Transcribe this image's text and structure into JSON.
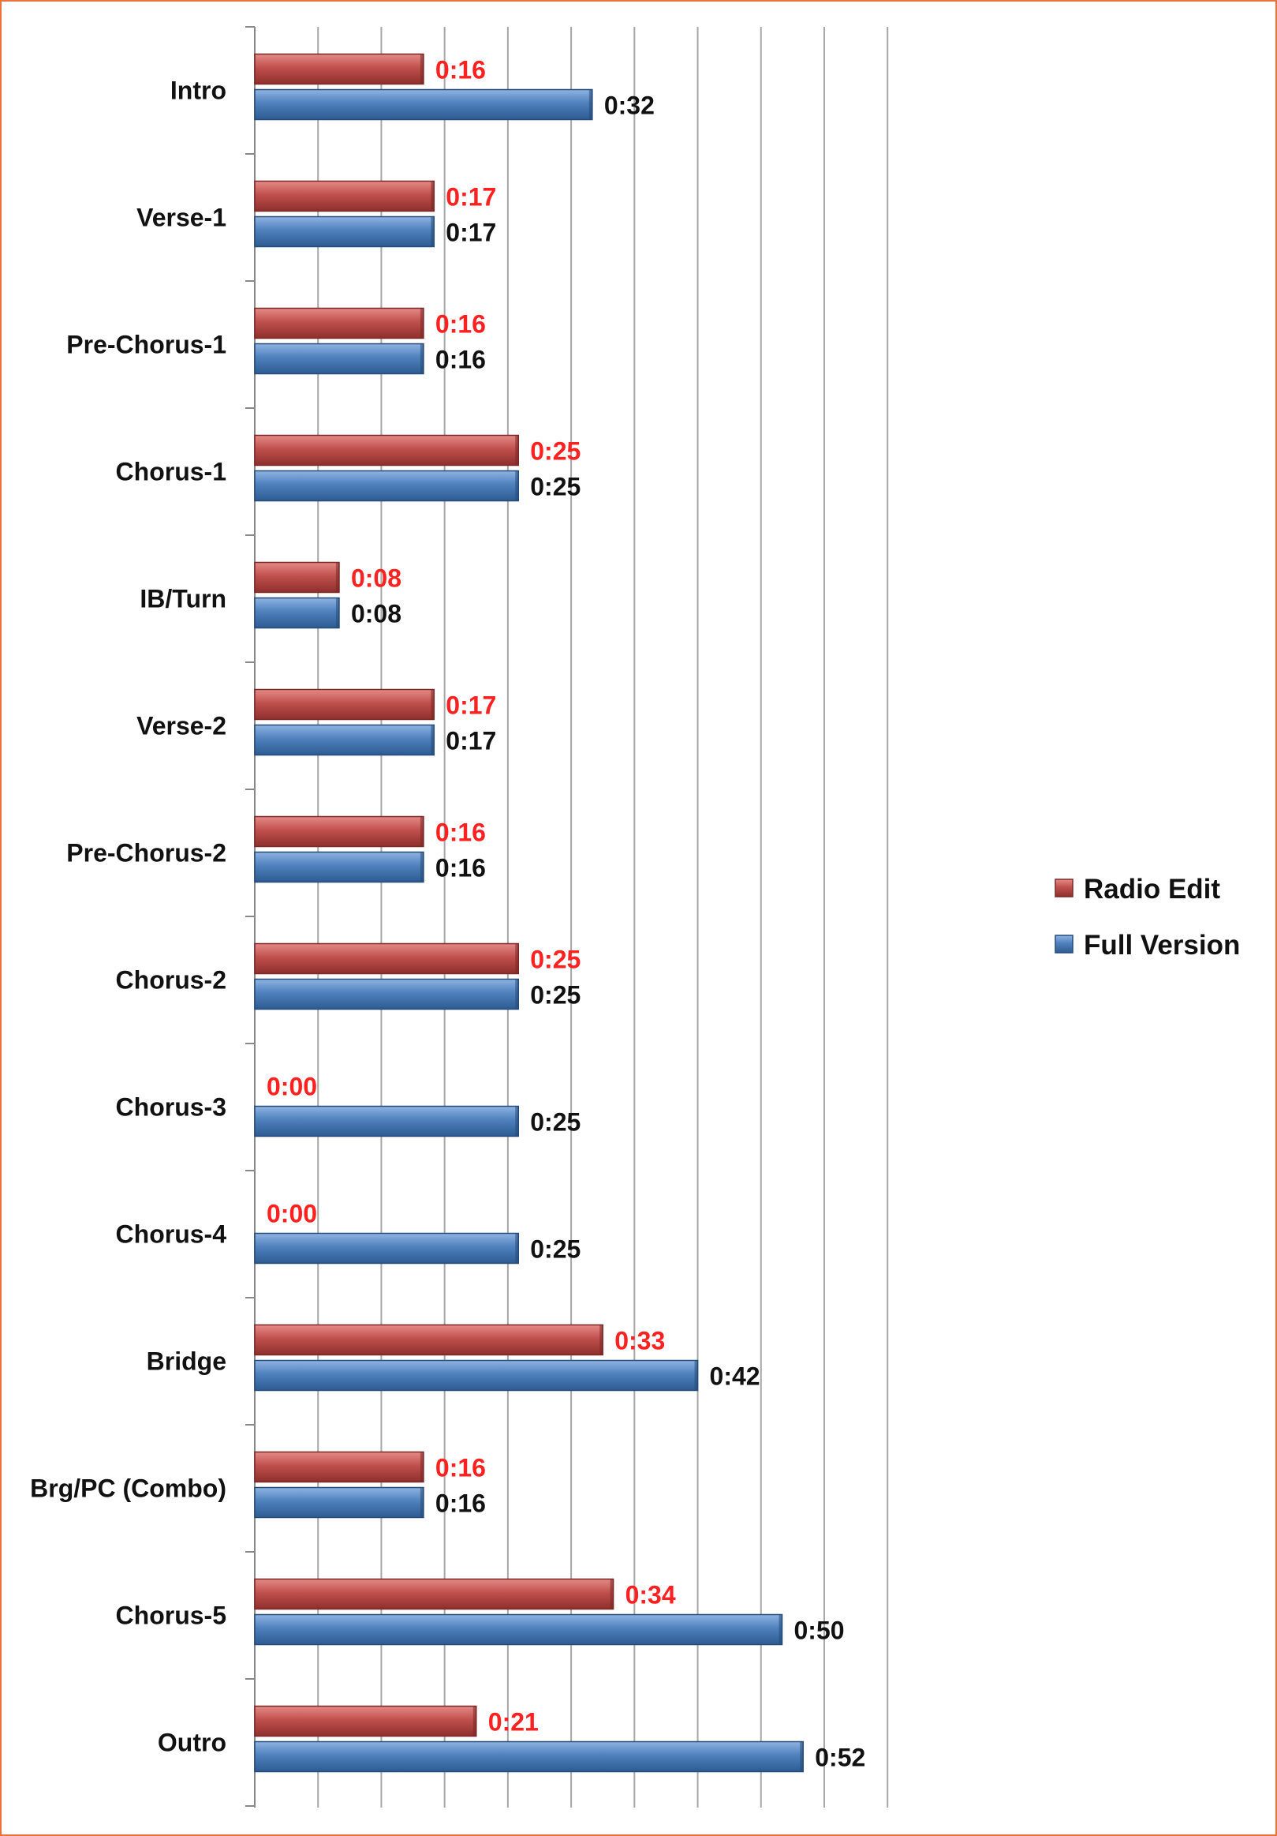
{
  "chart_data": {
    "type": "bar",
    "orientation": "horizontal",
    "categories": [
      "Intro",
      "Verse-1",
      "Pre-Chorus-1",
      "Chorus-1",
      "IB/Turn",
      "Verse-2",
      "Pre-Chorus-2",
      "Chorus-2",
      "Chorus-3",
      "Chorus-4",
      "Bridge",
      "Brg/PC (Combo)",
      "Chorus-5",
      "Outro"
    ],
    "series": [
      {
        "name": "Radio Edit",
        "color": "#c0504d",
        "label_color": "#ff2020",
        "values": [
          16,
          17,
          16,
          25,
          8,
          17,
          16,
          25,
          0,
          0,
          33,
          16,
          34,
          21
        ],
        "labels": [
          "0:16",
          "0:17",
          "0:16",
          "0:25",
          "0:08",
          "0:17",
          "0:16",
          "0:25",
          "0:00",
          "0:00",
          "0:33",
          "0:16",
          "0:34",
          "0:21"
        ]
      },
      {
        "name": "Full Version",
        "color": "#4f81bd",
        "label_color": "#111111",
        "values": [
          32,
          17,
          16,
          25,
          8,
          17,
          16,
          25,
          25,
          25,
          42,
          16,
          50,
          52
        ],
        "labels": [
          "0:32",
          "0:17",
          "0:16",
          "0:25",
          "0:08",
          "0:17",
          "0:16",
          "0:25",
          "0:25",
          "0:25",
          "0:42",
          "0:16",
          "0:50",
          "0:52"
        ]
      }
    ],
    "xlim": [
      0,
      60
    ],
    "value_unit": "seconds",
    "grid": "vertical",
    "legend": "right"
  }
}
